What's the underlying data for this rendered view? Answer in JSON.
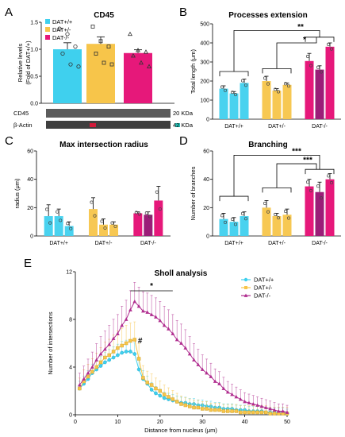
{
  "colors": {
    "wt": "#3fd0ee",
    "het": "#f7c54a",
    "ko": "#e6187a",
    "ko_dark": "#9b1e78",
    "ko_line": "#b02d8f"
  },
  "panels": {
    "A": "A",
    "B": "B",
    "C": "C",
    "D": "D",
    "E": "E"
  },
  "blot": {
    "rows": [
      {
        "label": "CD45",
        "kda": "20 KDa"
      },
      {
        "label": "β-Actin",
        "kda": "42 KDa"
      }
    ]
  },
  "chart_data": [
    {
      "id": "A",
      "type": "bar",
      "title": "CD45",
      "ylabel_lines": [
        "Relative levels",
        "(Fold of DAT+/+)"
      ],
      "ylim": [
        0,
        1.5
      ],
      "yticks": [
        0.0,
        0.5,
        1.0,
        1.5
      ],
      "ytick_labels": [
        "0.0",
        "0.5",
        "1.0",
        "1.5"
      ],
      "legend": [
        "DAT+/+",
        "DAT+/-",
        "DAT-/-"
      ],
      "categories": [
        "DAT+/+",
        "DAT+/-",
        "DAT-/-"
      ],
      "values": [
        1.0,
        1.1,
        0.93
      ],
      "errors": [
        0.12,
        0.13,
        0.06
      ],
      "points": [
        [
          1.38,
          1.28,
          1.05,
          0.92,
          0.72,
          0.68
        ],
        [
          1.42,
          1.15,
          1.05,
          0.92,
          0.75,
          0.72
        ],
        [
          1.28,
          0.98,
          0.95,
          0.88,
          0.75,
          0.68
        ]
      ]
    },
    {
      "id": "B",
      "type": "bar",
      "title": "Processes extension",
      "ylabel": "Total length (μm)",
      "ylim": [
        0,
        500
      ],
      "yticks": [
        0,
        100,
        200,
        300,
        400,
        500
      ],
      "ytick_labels": [
        "0",
        "100",
        "200",
        "300",
        "400",
        "500"
      ],
      "groups": [
        "DAT+/+",
        "DAT+/-",
        "DAT-/-"
      ],
      "series_values": [
        [
          160,
          135,
          190
        ],
        [
          200,
          150,
          180
        ],
        [
          305,
          260,
          380
        ]
      ],
      "series_errors": [
        [
          15,
          10,
          20
        ],
        [
          25,
          10,
          10
        ],
        [
          40,
          20,
          20
        ]
      ],
      "significance": [
        "**",
        "*"
      ]
    },
    {
      "id": "C",
      "type": "bar",
      "title": "Max intersection radius",
      "ylabel": "radius (μm)",
      "ylim": [
        0,
        60
      ],
      "yticks": [
        0,
        20,
        40,
        60
      ],
      "ytick_labels": [
        "0",
        "20",
        "40",
        "60"
      ],
      "groups": [
        "DAT+/+",
        "DAT+/-",
        "DAT-/-"
      ],
      "series_values": [
        [
          14,
          14,
          7
        ],
        [
          19,
          8,
          8
        ],
        [
          16,
          15,
          25
        ]
      ],
      "series_errors": [
        [
          8,
          5,
          3
        ],
        [
          8,
          4,
          2
        ],
        [
          1,
          2,
          10
        ]
      ]
    },
    {
      "id": "D",
      "type": "bar",
      "title": "Branching",
      "ylabel": "Number of branches",
      "ylim": [
        0,
        60
      ],
      "yticks": [
        0,
        20,
        40,
        60
      ],
      "ytick_labels": [
        "0",
        "20",
        "40",
        "60"
      ],
      "groups": [
        "DAT+/+",
        "DAT+/-",
        "DAT-/-"
      ],
      "series_values": [
        [
          12,
          10,
          14
        ],
        [
          20,
          14,
          15
        ],
        [
          35,
          31,
          40
        ]
      ],
      "series_errors": [
        [
          4,
          3,
          3
        ],
        [
          5,
          2,
          4
        ],
        [
          5,
          7,
          4
        ]
      ],
      "significance": [
        "***",
        "***"
      ]
    },
    {
      "id": "E",
      "type": "line",
      "title": "Sholl analysis",
      "xlabel": "Distance from nucleus (μm)",
      "ylabel": "Number of intersections",
      "xlim": [
        0,
        50
      ],
      "ylim": [
        0,
        12
      ],
      "xticks": [
        0,
        10,
        20,
        30,
        40,
        50
      ],
      "xtick_labels": [
        "0",
        "10",
        "20",
        "30",
        "40",
        "50"
      ],
      "yticks": [
        0,
        4,
        8,
        12
      ],
      "ytick_labels": [
        "0",
        "4",
        "8",
        "12"
      ],
      "x": [
        1,
        2,
        3,
        4,
        5,
        6,
        7,
        8,
        9,
        10,
        11,
        12,
        13,
        14,
        15,
        16,
        17,
        18,
        19,
        20,
        21,
        22,
        23,
        24,
        25,
        26,
        27,
        28,
        29,
        30,
        31,
        32,
        33,
        34,
        35,
        36,
        37,
        38,
        39,
        40,
        41,
        42,
        43,
        44,
        45,
        46,
        47,
        48,
        49,
        50
      ],
      "series": [
        {
          "name": "DAT+/+",
          "values": [
            2.2,
            2.6,
            3.0,
            3.5,
            3.8,
            4.1,
            4.4,
            4.6,
            4.8,
            5.0,
            5.2,
            5.3,
            5.3,
            5.1,
            3.8,
            3.0,
            2.6,
            2.1,
            1.8,
            1.6,
            1.4,
            1.3,
            1.2,
            1.1,
            1.0,
            1.0,
            0.9,
            0.9,
            0.8,
            0.8,
            0.7,
            0.7,
            0.6,
            0.6,
            0.5,
            0.5,
            0.5,
            0.4,
            0.4,
            0.4,
            0.3,
            0.3,
            0.3,
            0.3,
            0.2,
            0.2,
            0.2,
            0.2,
            0.2,
            0.1
          ]
        },
        {
          "name": "DAT+/-",
          "values": [
            2.2,
            2.8,
            3.2,
            3.6,
            4.0,
            4.4,
            4.8,
            5.0,
            5.3,
            5.6,
            5.8,
            6.0,
            6.2,
            6.3,
            4.7,
            3.1,
            2.7,
            2.5,
            2.2,
            2.0,
            1.7,
            1.5,
            1.3,
            1.1,
            0.9,
            0.8,
            0.7,
            0.6,
            0.6,
            0.5,
            0.5,
            0.4,
            0.4,
            0.4,
            0.3,
            0.3,
            0.3,
            0.3,
            0.2,
            0.2,
            0.2,
            0.2,
            0.2,
            0.2,
            0.2,
            0.1,
            0.1,
            0.1,
            0.1,
            0.1
          ]
        },
        {
          "name": "DAT-/-",
          "values": [
            2.5,
            3.0,
            3.5,
            4.0,
            4.6,
            5.1,
            5.5,
            5.9,
            6.4,
            6.8,
            7.5,
            8.0,
            8.8,
            9.5,
            9.1,
            8.7,
            8.6,
            8.4,
            8.2,
            7.9,
            7.5,
            7.2,
            6.8,
            6.3,
            6.0,
            5.6,
            5.1,
            4.6,
            4.2,
            3.8,
            3.5,
            3.2,
            2.8,
            2.6,
            2.2,
            1.9,
            1.7,
            1.5,
            1.3,
            1.1,
            1.0,
            0.9,
            0.8,
            0.7,
            0.6,
            0.5,
            0.4,
            0.3,
            0.3,
            0.2
          ]
        }
      ],
      "significance": [
        "*",
        "#"
      ]
    }
  ]
}
